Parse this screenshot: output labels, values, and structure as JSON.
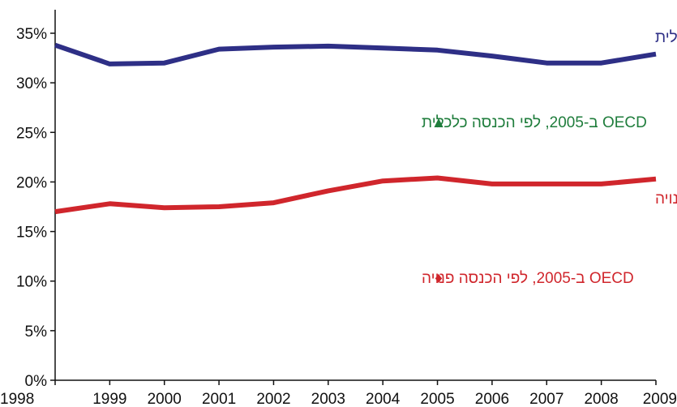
{
  "chart_data": {
    "type": "line",
    "x": [
      "1998",
      "1999",
      "2000",
      "2001",
      "2002",
      "2003",
      "2004",
      "2005",
      "2006",
      "2007",
      "2008",
      "2009"
    ],
    "ylim": [
      0,
      35
    ],
    "y_ticks": [
      "0%",
      "5%",
      "10%",
      "15%",
      "20%",
      "25%",
      "30%",
      "35%"
    ],
    "grid": false,
    "series": [
      {
        "name": "ישראל – לפי הכנסה כלכלית",
        "color": "#2e2f86",
        "values": [
          33.8,
          31.9,
          32.0,
          33.4,
          33.6,
          33.7,
          33.5,
          33.3,
          32.7,
          32.0,
          32.0,
          32.9
        ]
      },
      {
        "name": "ישראל – לפי הכנסה פנויה",
        "color": "#d0262c",
        "values": [
          17.0,
          17.8,
          17.4,
          17.5,
          17.9,
          19.1,
          20.1,
          20.4,
          19.8,
          19.8,
          19.8,
          20.3
        ]
      }
    ],
    "markers": [
      {
        "label": "OECD ב-2005, לפי הכנסה כלכלית",
        "symbol": "▲",
        "color": "#1f7d3c"
      },
      {
        "label": "OECD ב-2005, לפי הכנסה פנויה",
        "symbol": "♦",
        "color": "#d0262c"
      }
    ]
  }
}
